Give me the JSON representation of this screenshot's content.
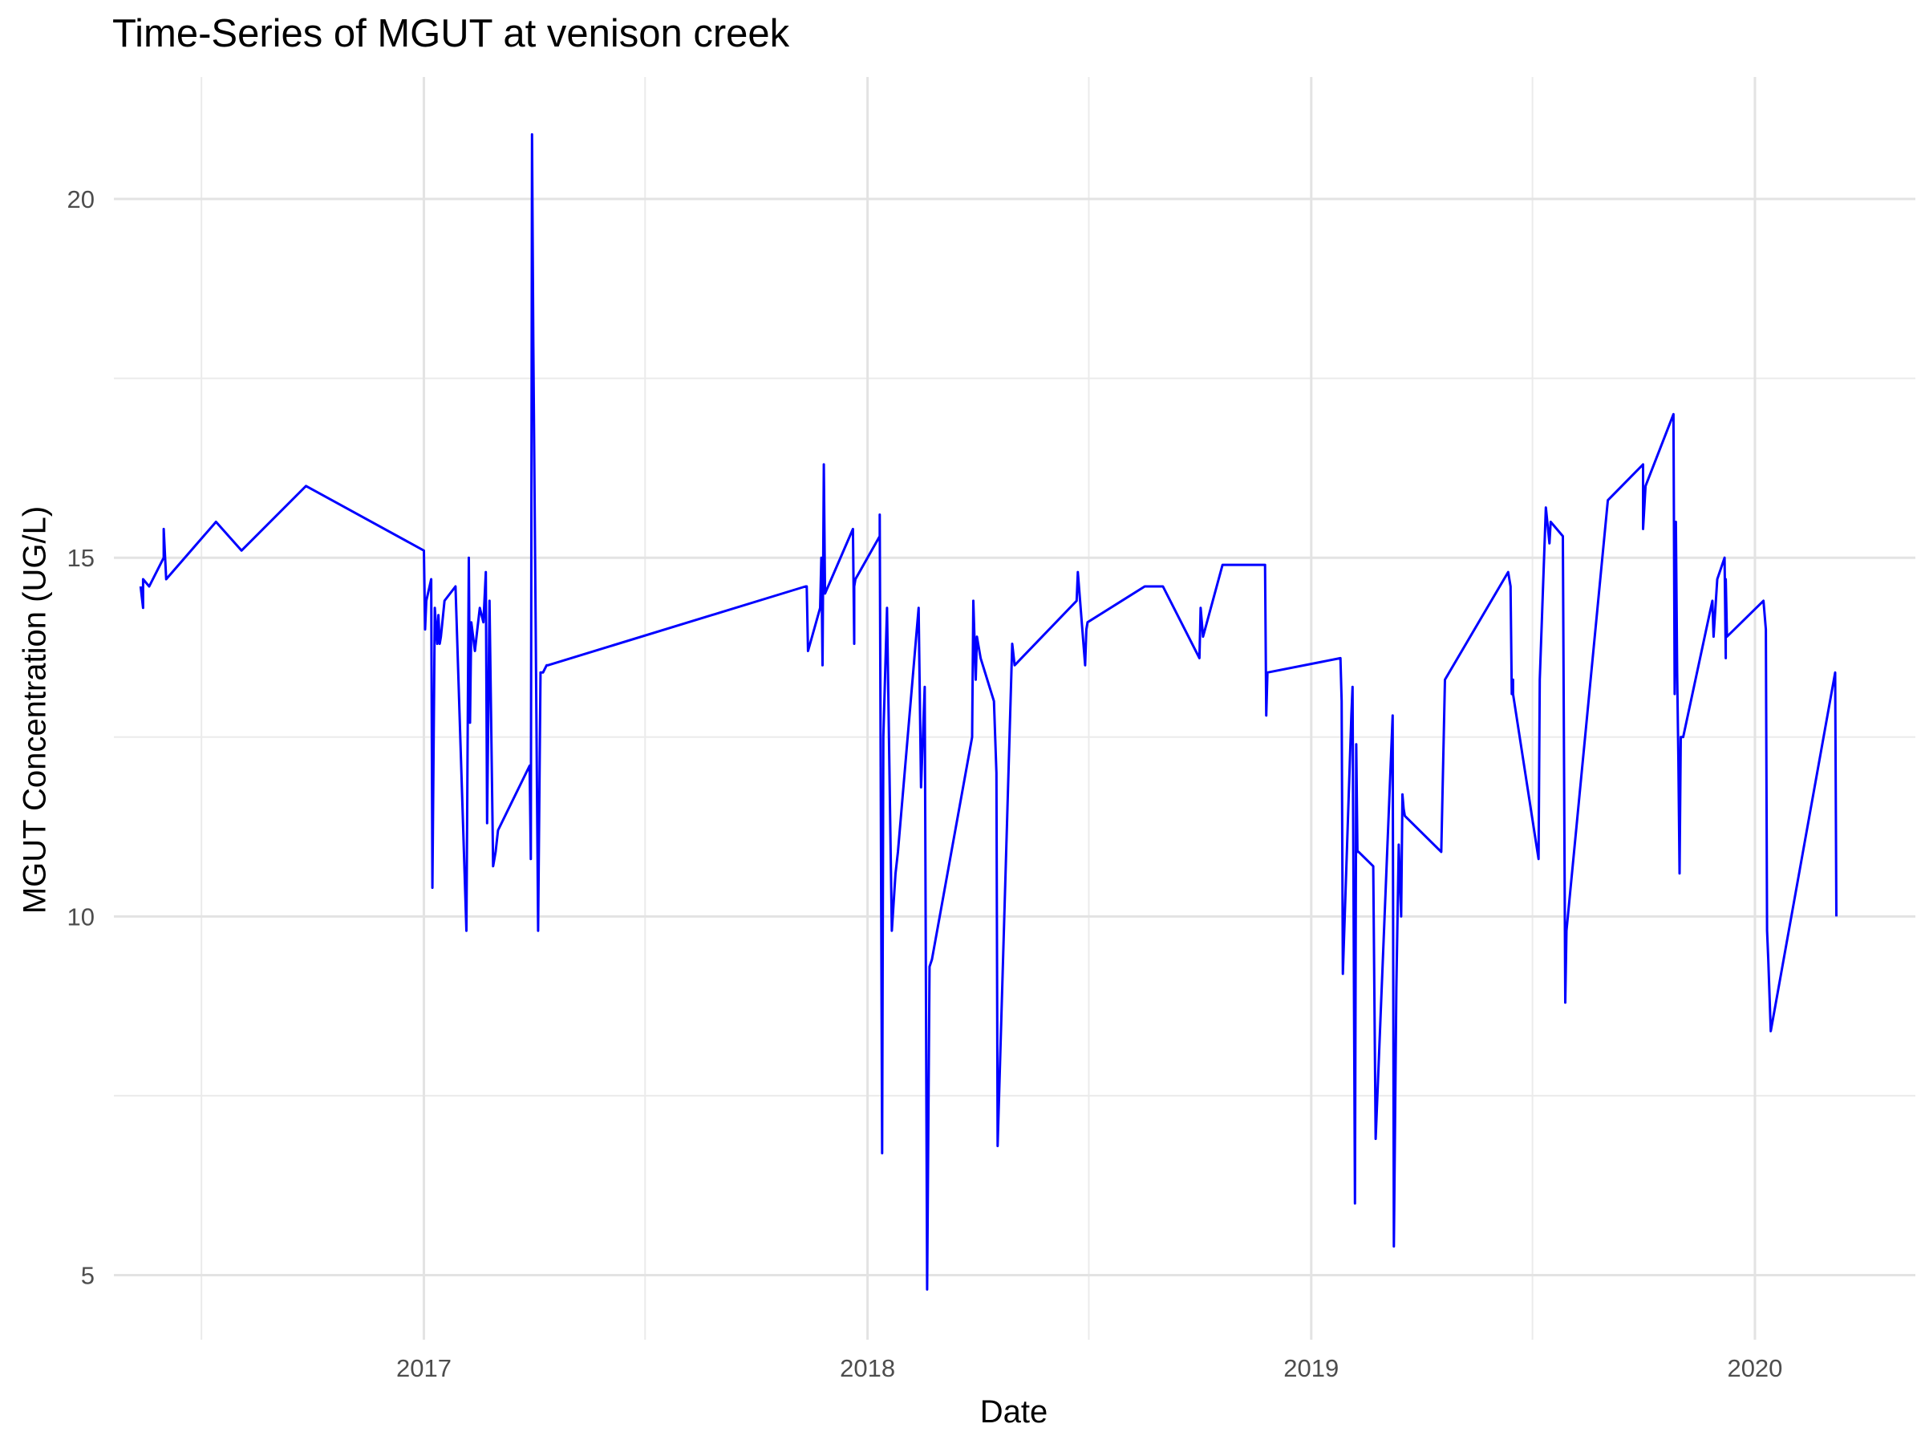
{
  "chart_data": {
    "type": "line",
    "title": "Time-Series of MGUT at venison creek",
    "xlabel": "Date",
    "ylabel": "MGUT Concentration (UG/L)",
    "x_ticks": [
      "2017",
      "2018",
      "2019",
      "2020"
    ],
    "y_ticks": [
      5,
      10,
      15,
      20
    ],
    "xlim": [
      "2016-04-21",
      "2020-05-12"
    ],
    "ylim": [
      4.1,
      21.7
    ],
    "grid": true,
    "legend": "none",
    "line_color": "#0000ff",
    "series": [
      {
        "x": [
          "2016-05-13",
          "2016-05-15",
          "2016-05-15",
          "2016-05-20",
          "2016-06-01",
          "2016-06-01",
          "2016-06-03",
          "2016-07-14",
          "2016-08-04",
          "2016-09-26",
          "2017-01-01",
          "2017-01-02",
          "2017-01-03",
          "2017-01-07",
          "2017-01-08",
          "2017-01-10",
          "2017-01-12",
          "2017-01-13",
          "2017-01-14",
          "2017-01-15",
          "2017-01-18",
          "2017-01-27",
          "2017-02-05",
          "2017-02-07",
          "2017-02-08",
          "2017-02-09",
          "2017-02-12",
          "2017-02-14",
          "2017-02-16",
          "2017-02-19",
          "2017-02-21",
          "2017-02-22",
          "2017-02-24",
          "2017-02-27",
          "2017-03-01",
          "2017-03-03",
          "2017-03-29",
          "2017-03-30",
          "2017-03-31",
          "2017-04-01",
          "2017-04-03",
          "2017-04-05",
          "2017-04-07",
          "2017-04-09",
          "2017-04-12",
          "2017-04-13",
          "2017-11-11",
          "2017-11-12",
          "2017-11-13",
          "2017-11-23",
          "2017-11-24",
          "2017-11-25",
          "2017-11-26",
          "2017-11-27",
          "2017-12-20",
          "2017-12-21",
          "2017-12-21",
          "2017-12-22",
          "2018-01-11",
          "2018-01-11",
          "2018-01-13",
          "2018-01-14",
          "2018-01-17",
          "2018-01-21",
          "2018-01-24",
          "2018-01-26",
          "2018-02-12",
          "2018-02-14",
          "2018-02-17",
          "2018-02-19",
          "2018-02-21",
          "2018-02-23",
          "2018-03-28",
          "2018-03-29",
          "2018-03-31",
          "2018-04-01",
          "2018-04-02",
          "2018-04-04",
          "2018-04-15",
          "2018-04-17",
          "2018-04-18",
          "2018-04-30",
          "2018-05-02",
          "2018-06-22",
          "2018-06-23",
          "2018-06-29",
          "2018-06-30",
          "2018-07-01",
          "2018-08-17",
          "2018-09-01",
          "2018-10-01",
          "2018-10-02",
          "2018-10-04",
          "2018-10-20",
          "2018-11-24",
          "2018-11-25",
          "2018-11-26",
          "2019-01-25",
          "2019-01-26",
          "2019-01-27",
          "2019-02-03",
          "2019-02-04",
          "2019-02-06",
          "2019-02-07",
          "2019-02-08",
          "2019-02-09",
          "2019-02-21",
          "2019-02-23",
          "2019-03-09",
          "2019-03-10",
          "2019-03-12",
          "2019-03-14",
          "2019-03-16",
          "2019-03-17",
          "2019-03-18",
          "2019-03-19",
          "2019-04-18",
          "2019-04-21",
          "2019-06-12",
          "2019-06-14",
          "2019-06-15",
          "2019-06-16",
          "2019-06-16",
          "2019-07-07",
          "2019-07-08",
          "2019-07-13",
          "2019-07-16",
          "2019-07-17",
          "2019-07-27",
          "2019-07-29",
          "2019-07-30",
          "2019-09-02",
          "2019-10-01",
          "2019-10-01",
          "2019-10-03",
          "2019-10-26",
          "2019-10-27",
          "2019-10-28",
          "2019-10-29",
          "2019-10-30",
          "2019-10-31",
          "2019-11-01",
          "2019-11-02",
          "2019-11-03",
          "2019-11-27",
          "2019-11-28",
          "2019-12-01",
          "2019-12-07",
          "2019-12-08",
          "2019-12-08",
          "2019-12-09",
          "2020-01-08",
          "2020-01-10",
          "2020-01-11",
          "2020-01-12",
          "2020-01-14",
          "2020-03-07",
          "2020-03-08"
        ],
        "values": [
          14.6,
          14.3,
          14.7,
          14.6,
          15.0,
          15.4,
          14.7,
          15.5,
          15.1,
          16.0,
          15.1,
          14.0,
          14.4,
          14.7,
          10.4,
          14.3,
          13.8,
          14.2,
          13.8,
          13.9,
          14.4,
          14.6,
          9.8,
          15.0,
          12.7,
          14.1,
          13.7,
          14.0,
          14.3,
          14.1,
          14.8,
          11.3,
          14.4,
          10.7,
          10.9,
          11.2,
          12.1,
          10.8,
          20.9,
          18.0,
          14.0,
          9.8,
          13.4,
          13.4,
          13.5,
          13.5,
          14.6,
          14.6,
          13.7,
          14.3,
          15.0,
          13.5,
          16.3,
          14.5,
          15.4,
          13.8,
          14.6,
          14.7,
          15.3,
          15.6,
          6.7,
          12.5,
          14.3,
          9.8,
          10.6,
          10.9,
          14.3,
          11.8,
          13.2,
          4.8,
          9.3,
          9.4,
          12.5,
          14.4,
          13.3,
          13.9,
          13.8,
          13.6,
          13.0,
          12.0,
          6.8,
          13.8,
          13.5,
          14.4,
          14.8,
          13.5,
          14.0,
          14.1,
          14.6,
          14.6,
          13.6,
          14.3,
          13.9,
          14.9,
          14.9,
          12.8,
          13.4,
          13.6,
          13.0,
          9.2,
          12.8,
          13.2,
          6.0,
          12.4,
          10.9,
          10.9,
          10.7,
          6.9,
          12.8,
          5.4,
          9.0,
          11.0,
          10.0,
          11.7,
          11.5,
          11.4,
          10.9,
          13.3,
          14.8,
          14.6,
          13.1,
          13.3,
          13.1,
          10.8,
          13.3,
          15.7,
          15.2,
          15.5,
          15.3,
          8.8,
          9.8,
          15.8,
          16.3,
          15.4,
          16.0,
          17.0,
          13.1,
          15.5,
          13.4,
          12.2,
          10.6,
          12.5,
          12.5,
          12.5,
          14.4,
          13.9,
          14.7,
          15.0,
          13.6,
          14.7,
          13.9,
          14.4,
          14.0,
          9.8,
          9.4,
          8.4,
          13.4,
          10.0
        ]
      }
    ]
  }
}
